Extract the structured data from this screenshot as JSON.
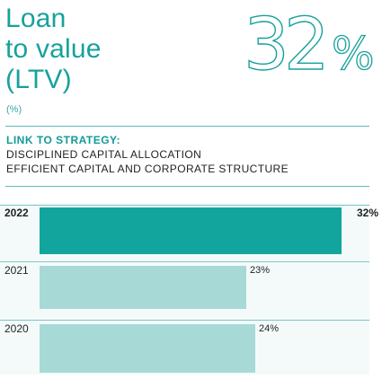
{
  "header": {
    "title_lines": [
      "Loan",
      "to value",
      "(LTV)"
    ],
    "unit": "(%)",
    "headline_value": "32",
    "headline_unit": "%"
  },
  "strategy": {
    "heading": "LINK TO STRATEGY:",
    "lines": [
      "DISCIPLINED CAPITAL ALLOCATION",
      "EFFICIENT CAPITAL AND CORPORATE STRUCTURE"
    ]
  },
  "colors": {
    "accent": "#17a19d",
    "current_bar": "#12a59e",
    "past_bar": "#a7dad6"
  },
  "chart_data": {
    "type": "bar",
    "orientation": "horizontal",
    "categories": [
      "2022",
      "2021",
      "2020"
    ],
    "values": [
      32,
      23,
      24
    ],
    "value_labels": [
      "32%",
      "23%",
      "24%"
    ],
    "xlim": [
      0,
      34
    ],
    "highlight": "2022",
    "grid": false,
    "title": "",
    "xlabel": "",
    "ylabel": ""
  }
}
